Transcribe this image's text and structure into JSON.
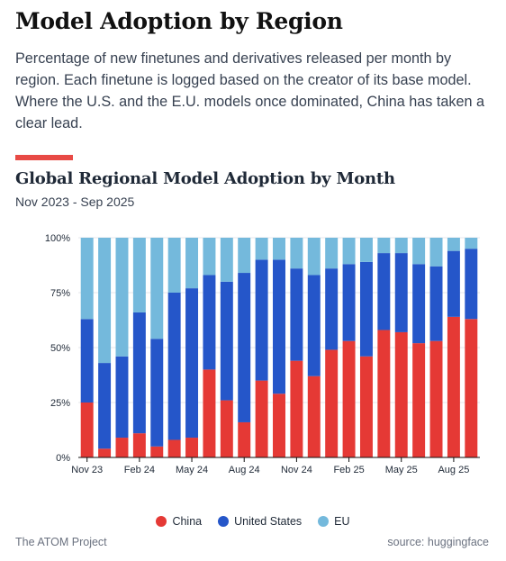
{
  "header": {
    "title": "Model Adoption by Region",
    "description": "Percentage of new finetunes and derivatives released per month by region. Each finetune is logged based on the creator of its base model. Where the U.S. and the E.U. models once dominated, China has taken a clear lead."
  },
  "chart_data": {
    "type": "bar",
    "stacked": true,
    "title": "Global Regional Model Adoption by Month",
    "subtitle": "Nov 2023 - Sep 2025",
    "xlabel": "",
    "ylabel": "",
    "ylim": [
      0,
      100
    ],
    "y_ticks": [
      "0%",
      "25%",
      "50%",
      "75%",
      "100%"
    ],
    "x_tick_labels": [
      "Nov 23",
      "Feb 24",
      "May 24",
      "Aug 24",
      "Nov 24",
      "Feb 25",
      "May 25",
      "Aug 25"
    ],
    "x_tick_indices": [
      0,
      3,
      6,
      9,
      12,
      15,
      18,
      21
    ],
    "categories": [
      "Nov 2023",
      "Dec 2023",
      "Jan 2024",
      "Feb 2024",
      "Mar 2024",
      "Apr 2024",
      "May 2024",
      "Jun 2024",
      "Jul 2024",
      "Aug 2024",
      "Sep 2024",
      "Oct 2024",
      "Nov 2024",
      "Dec 2024",
      "Jan 2025",
      "Feb 2025",
      "Mar 2025",
      "Apr 2025",
      "May 2025",
      "Jun 2025",
      "Jul 2025",
      "Aug 2025",
      "Sep 2025"
    ],
    "series": [
      {
        "name": "China",
        "color": "#e53935",
        "values": [
          25,
          4,
          9,
          11,
          5,
          8,
          9,
          40,
          26,
          16,
          35,
          29,
          44,
          37,
          49,
          53,
          46,
          58,
          57,
          52,
          53,
          64,
          63
        ]
      },
      {
        "name": "United States",
        "color": "#2556c9",
        "values": [
          38,
          39,
          37,
          55,
          49,
          67,
          68,
          43,
          54,
          68,
          55,
          61,
          42,
          46,
          37,
          35,
          43,
          35,
          36,
          36,
          34,
          30,
          32
        ]
      },
      {
        "name": "EU",
        "color": "#74b9dc",
        "values": [
          37,
          57,
          54,
          34,
          46,
          25,
          23,
          17,
          20,
          16,
          10,
          10,
          14,
          17,
          14,
          12,
          11,
          7,
          7,
          12,
          13,
          6,
          5
        ]
      }
    ],
    "legend_position": "bottom",
    "grid": true
  },
  "footer": {
    "left": "The ATOM Project",
    "right": "source: huggingface"
  }
}
